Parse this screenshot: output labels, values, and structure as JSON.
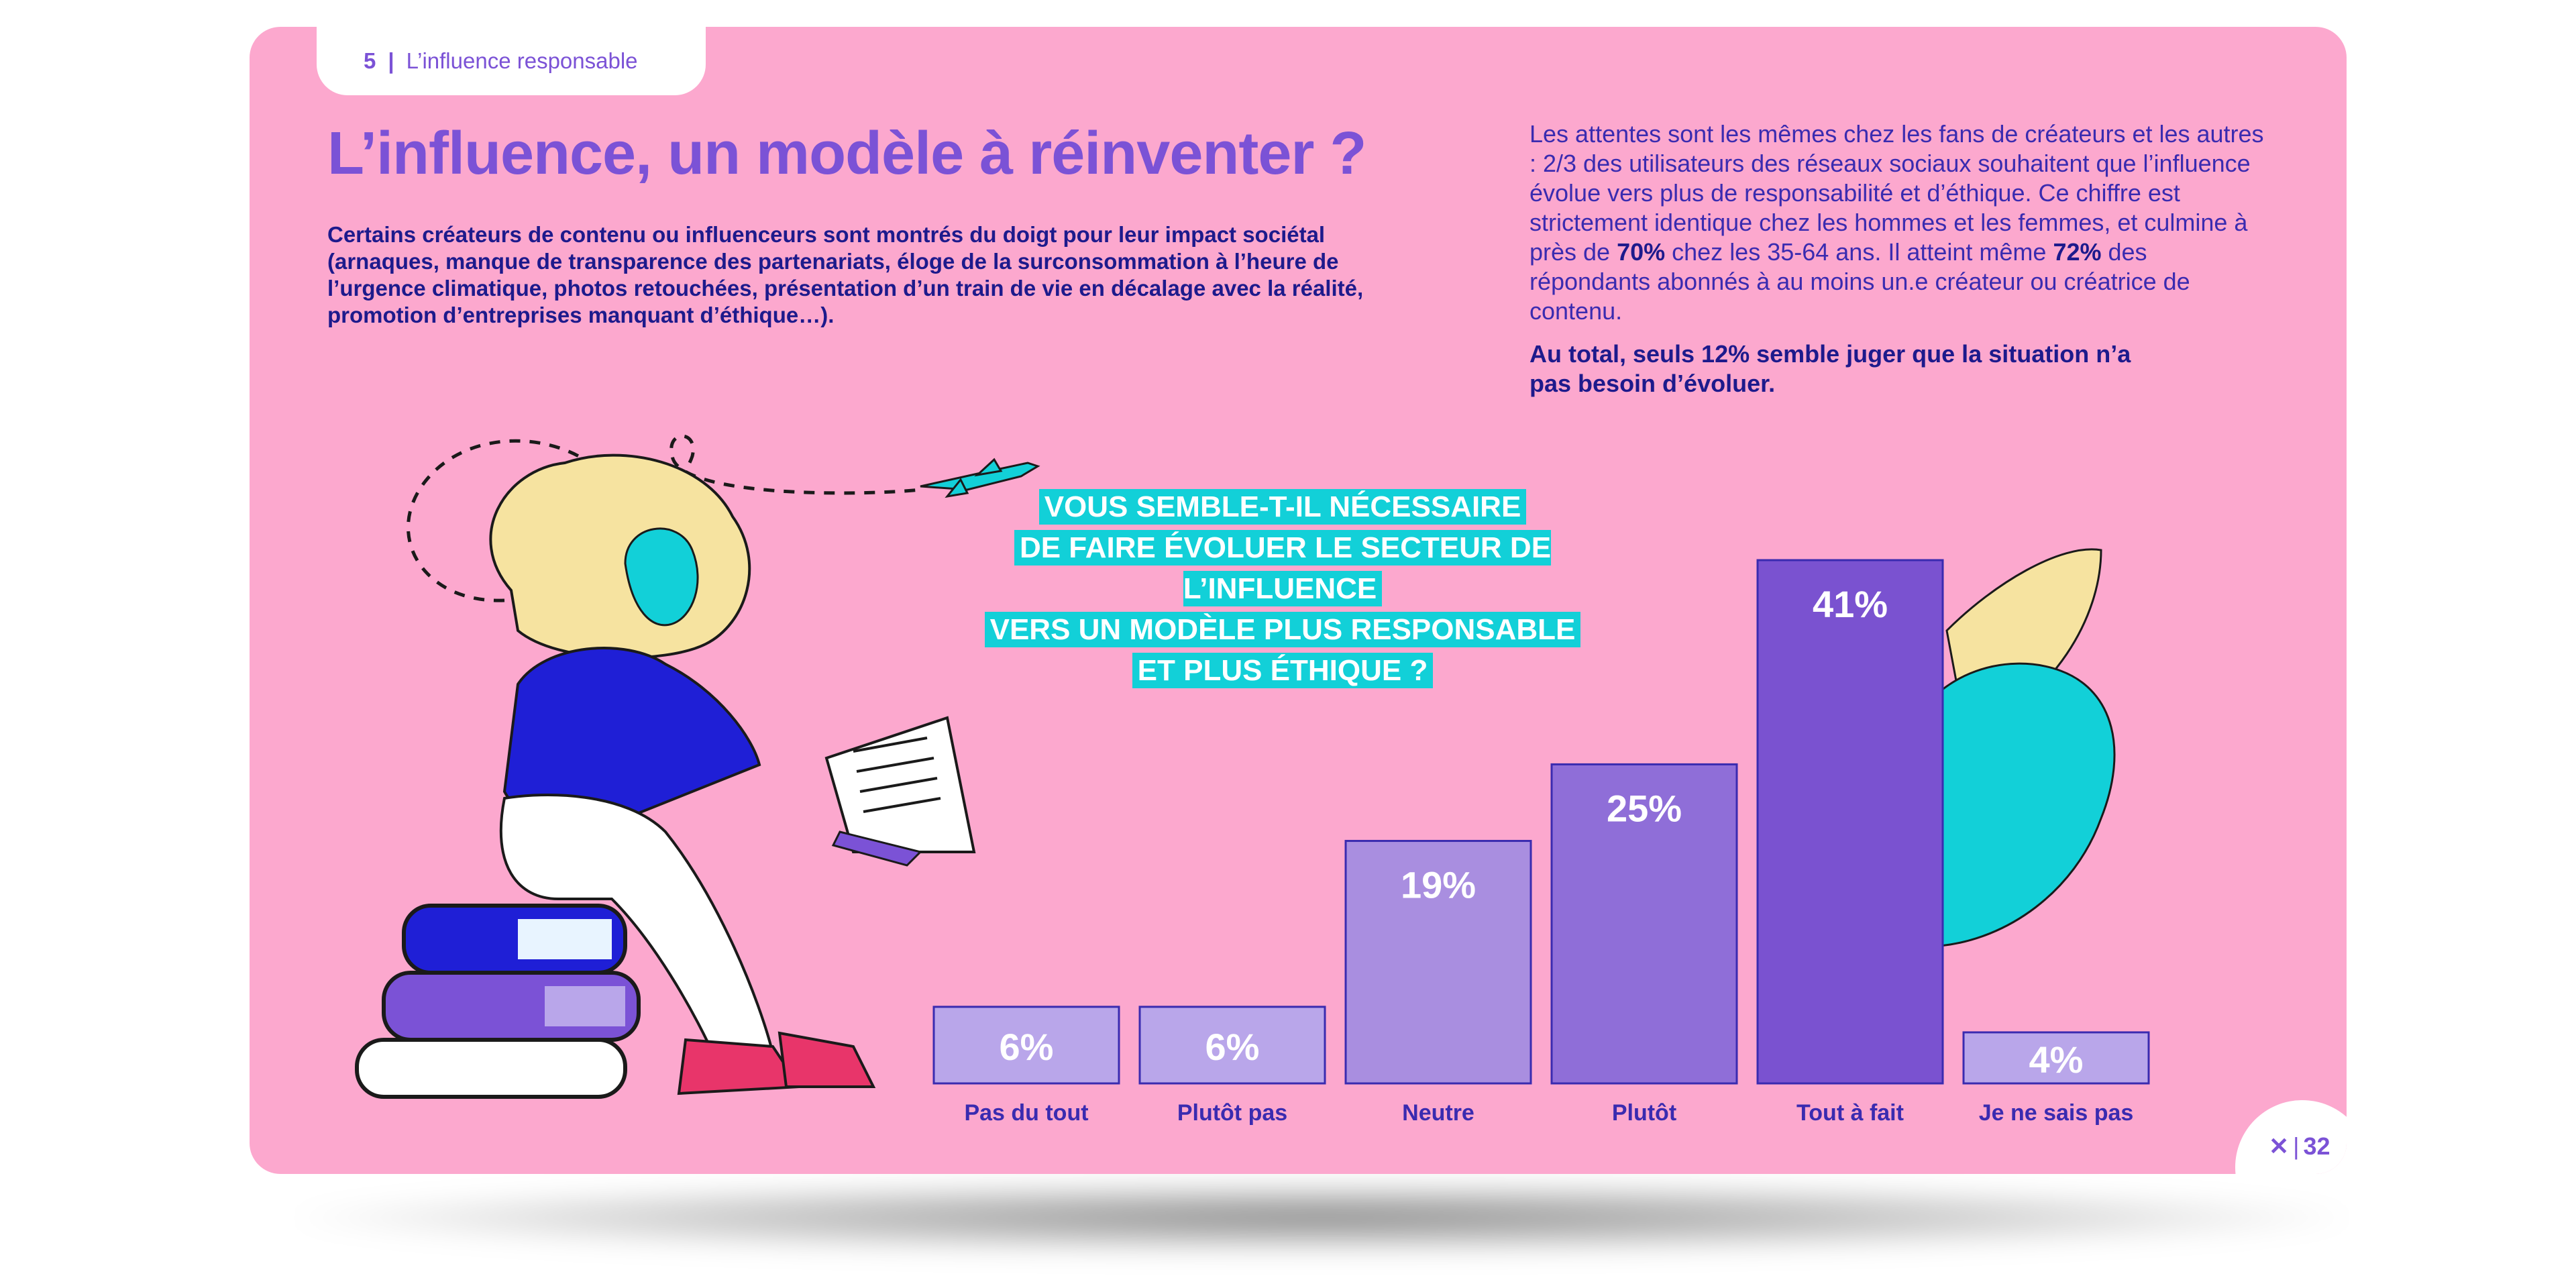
{
  "header": {
    "section_number": "5",
    "section_title": "L’influence responsable"
  },
  "title": "L’influence, un modèle à réinventer ?",
  "intro": "Certains créateurs de contenu ou influenceurs sont montrés du doigt pour leur impact sociétal (arnaques, manque de transparence des partenariats, éloge de la surconsommation à l’heure de l’urgence climatique, photos retouchées, présentation d’un train de vie en décalage avec la réalité, promotion d’entreprises manquant d’éthique…).",
  "right_text": {
    "p1_a": "Les attentes sont les mêmes chez les fans de créateurs et les autres : 2/3 des utilisateurs des réseaux sociaux souhaitent que l’influence évolue vers plus de responsabilité et d’éthique. Ce chiffre est strictement identique chez les hommes et les femmes, et culmine à près de ",
    "p1_b": "70%",
    "p1_c": " chez les 35-64 ans. Il atteint même ",
    "p1_d": "72%",
    "p1_e": " des répondants abonnés à au moins un.e créateur ou créatrice de contenu.",
    "total": "Au total, seuls 12% semble juger que la situation n’a pas besoin d’évoluer."
  },
  "question_lines": [
    "VOUS SEMBLE-T-IL NÉCESSAIRE",
    "DE FAIRE ÉVOLUER LE SECTEUR DE L’INFLUENCE",
    "VERS UN MODÈLE PLUS RESPONSABLE",
    "ET PLUS ÉTHIQUE ?"
  ],
  "chart_data": {
    "type": "bar",
    "title": "VOUS SEMBLE-T-IL NÉCESSAIRE DE FAIRE ÉVOLUER LE SECTEUR DE L’INFLUENCE VERS UN MODÈLE PLUS RESPONSABLE ET PLUS ÉTHIQUE ?",
    "categories": [
      "Pas du tout",
      "Plutôt pas",
      "Neutre",
      "Plutôt",
      "Tout à fait",
      "Je ne sais pas"
    ],
    "values": [
      6,
      6,
      19,
      25,
      41,
      4
    ],
    "value_labels": [
      "6%",
      "6%",
      "19%",
      "25%",
      "41%",
      "4%"
    ],
    "colors": [
      "#b9a6ea",
      "#b9a6ea",
      "#a98ee0",
      "#8f6ed8",
      "#7a52d0",
      "#b9a6ea"
    ],
    "ylim": [
      0,
      41
    ],
    "grid": false
  },
  "colors": {
    "background": "#fca8ce",
    "accent": "#7b52d6",
    "dark_text": "#1d1a8c",
    "highlight": "#12d0d8"
  },
  "footer": {
    "page_number": "32",
    "logo_icon": "x-logo-icon"
  }
}
